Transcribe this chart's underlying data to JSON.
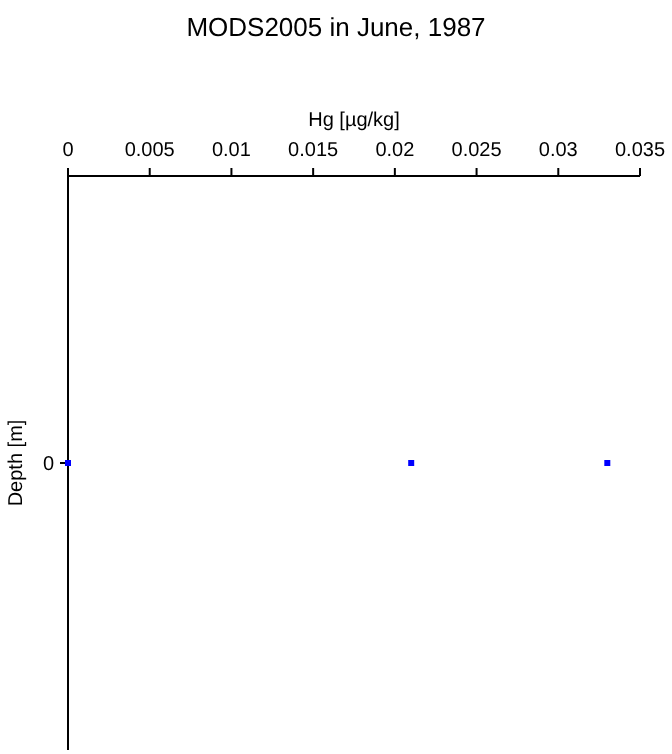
{
  "chart_data": {
    "type": "scatter",
    "orientation": "horizontal",
    "title": "MODS2005 in June, 1987",
    "xlabel": "Hg [µg/kg]",
    "ylabel": "Depth [m]",
    "categories": [
      "0"
    ],
    "series": [
      {
        "color": "#0000ff",
        "values": [
          0
        ]
      },
      {
        "color": "#0000ff",
        "values": [
          0.021
        ]
      },
      {
        "color": "#0000ff",
        "values": [
          0.033
        ]
      }
    ],
    "xlim": [
      0,
      0.035
    ],
    "xticks": [
      0,
      0.005,
      0.01,
      0.015,
      0.02,
      0.025,
      0.03,
      0.035
    ],
    "marker": "square"
  }
}
